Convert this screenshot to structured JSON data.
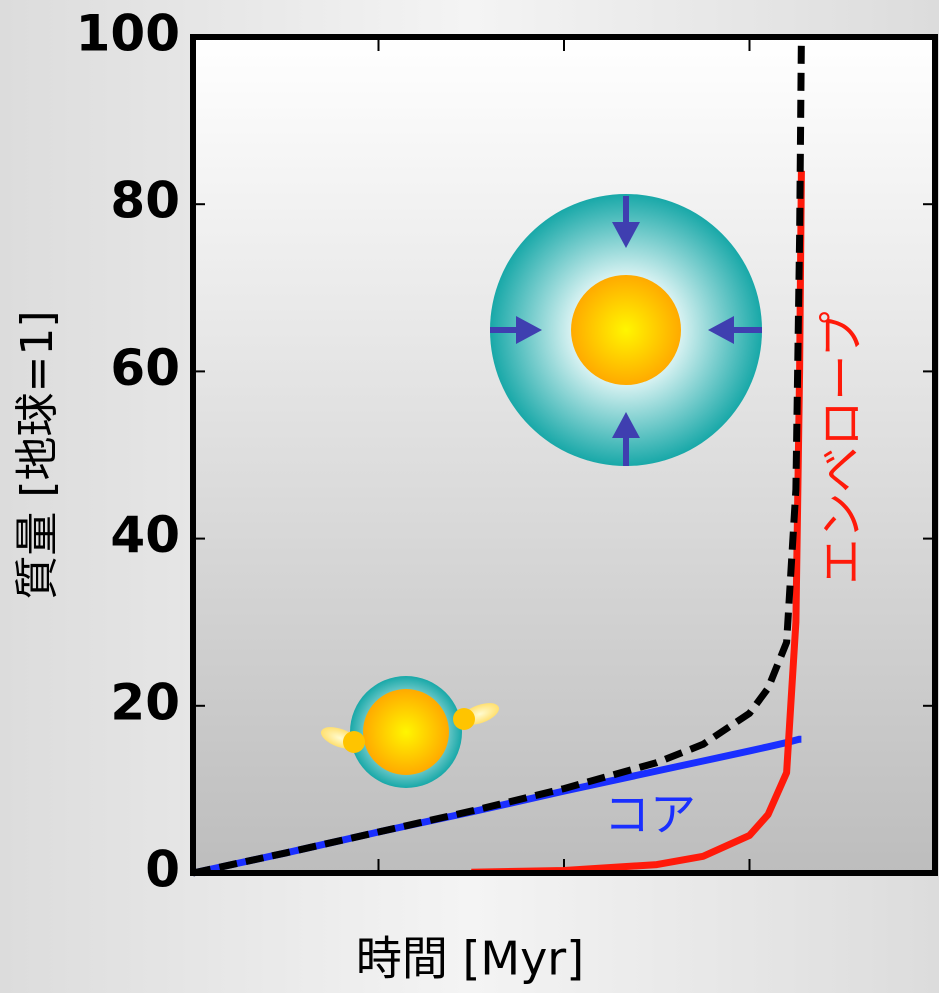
{
  "chart_data": {
    "type": "line",
    "y_label": "質量 [地球=1]",
    "x_label": "時間 [Myr]",
    "x": [
      0,
      0.5,
      1,
      1.5,
      2,
      2.5,
      2.75,
      3,
      3.1,
      3.2,
      3.25,
      3.27,
      3.28
    ],
    "xlim": [
      0,
      4
    ],
    "xticks": [
      1,
      2,
      3
    ],
    "ylim": [
      0,
      100
    ],
    "yticks": [
      0,
      20,
      40,
      60,
      80,
      100
    ],
    "series": [
      {
        "name": "コア",
        "color": "#1a2fff",
        "values": [
          0,
          2.4,
          4.9,
          7.3,
          9.8,
          12.2,
          13.4,
          14.6,
          15.1,
          15.6,
          15.9,
          16,
          16
        ]
      },
      {
        "name": "エンベロープ",
        "color": "#ff1a0a",
        "values": [
          null,
          null,
          null,
          0.1,
          0.3,
          1,
          2,
          4.5,
          7,
          12,
          30,
          60,
          84
        ]
      },
      {
        "color": "#000000",
        "dashed": true,
        "values": [
          0,
          2.4,
          4.9,
          7.4,
          10.1,
          13.2,
          15.4,
          19.1,
          22.1,
          27.6,
          45.9,
          76,
          100
        ]
      }
    ]
  }
}
